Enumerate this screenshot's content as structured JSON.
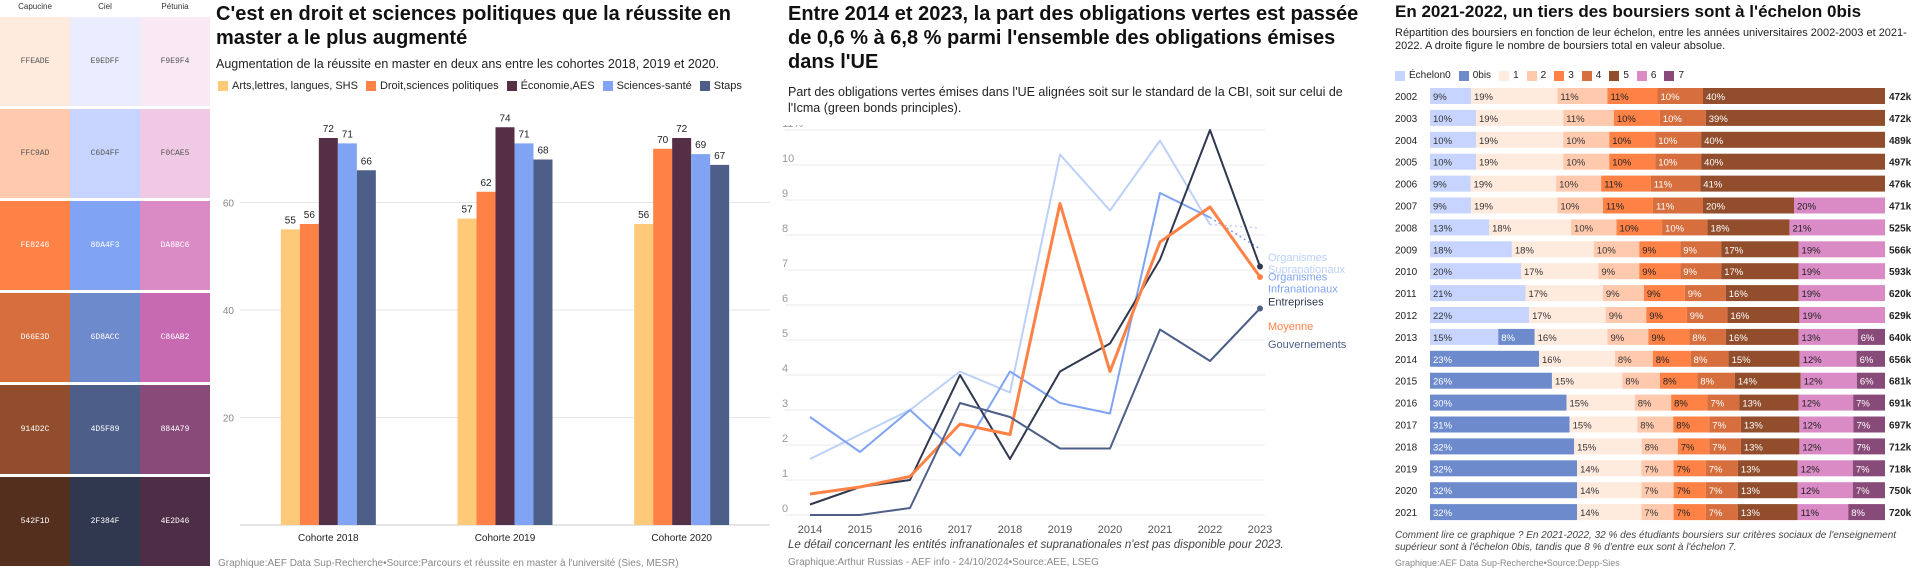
{
  "palette": {
    "columns": [
      {
        "name": "Capucine",
        "swatches": [
          {
            "hex": "FFEADE",
            "color": "#FFEADE",
            "text": "#555"
          },
          {
            "hex": "FFC9AD",
            "color": "#FFC9AD",
            "text": "#555"
          },
          {
            "hex": "FE8246",
            "color": "#FE8246",
            "text": "#fff"
          },
          {
            "hex": "D66E3D",
            "color": "#D66E3D",
            "text": "#fff"
          },
          {
            "hex": "914D2C",
            "color": "#914D2C",
            "text": "#fff"
          },
          {
            "hex": "542F1D",
            "color": "#542F1D",
            "text": "#fff"
          }
        ]
      },
      {
        "name": "Ciel",
        "swatches": [
          {
            "hex": "E9EDFF",
            "color": "#E9EDFF",
            "text": "#555"
          },
          {
            "hex": "C6D4FF",
            "color": "#C6D4FF",
            "text": "#555"
          },
          {
            "hex": "80A4F3",
            "color": "#80A4F3",
            "text": "#fff"
          },
          {
            "hex": "6D8ACC",
            "color": "#6D8ACC",
            "text": "#fff"
          },
          {
            "hex": "4D5F89",
            "color": "#4D5F89",
            "text": "#fff"
          },
          {
            "hex": "2F384F",
            "color": "#2F384F",
            "text": "#fff"
          }
        ]
      },
      {
        "name": "Pétunia",
        "swatches": [
          {
            "hex": "F9E9F4",
            "color": "#F9E9F4",
            "text": "#555"
          },
          {
            "hex": "F0CAE5",
            "color": "#F0CAE5",
            "text": "#555"
          },
          {
            "hex": "DA8BC6",
            "color": "#DA8BC6",
            "text": "#fff"
          },
          {
            "hex": "C86AB2",
            "color": "#C86AB2",
            "text": "#fff"
          },
          {
            "hex": "884A79",
            "color": "#884A79",
            "text": "#fff"
          },
          {
            "hex": "4E2D46",
            "color": "#4E2D46",
            "text": "#fff"
          }
        ]
      }
    ]
  },
  "chart1": {
    "title": "C'est en droit et sciences politiques que la réussite en master a le plus augmenté",
    "subtitle": "Augmentation de la réussite en master en deux ans entre les cohortes 2018, 2019 et 2020.",
    "source": "Graphique:AEF Data Sup-Recherche•Source:Parcours et réussite en master à l'université (Sies, MESR)"
  },
  "chart2": {
    "title": "Entre 2014 et 2023, la part des obligations vertes est passée de 0,6 % à 6,8 % parmi l'ensemble des obligations émises dans l'UE",
    "subtitle": "Part des obligations vertes émises dans l'UE alignées soit sur le standard de la CBI, soit sur celui de l'Icma (green bonds principles).",
    "note": "Le détail concernant les entités infranationales et supranationales n'est pas disponible pour 2023.",
    "source": "Graphique:Arthur Russias - AEF info - 24/10/2024•Source:AEE, LSEG"
  },
  "chart3": {
    "title": "En 2021-2022, un tiers des boursiers sont à l'échelon 0bis",
    "subtitle": "Répartition des boursiers en fonction de leur échelon, entre les années universitaires 2002-2003 et 2021-2022. A droite figure le nombre de boursiers total en valeur absolue.",
    "note": "Comment lire ce graphique ? En 2021-2022, 32 % des étudiants boursiers sur critères sociaux de l'enseignement supérieur sont à l'échelon 0bis, tandis que 8 % d'entre eux sont à l'échelon 7.",
    "source": "Graphique:AEF Data Sup-Recherche•Source:Depp-Sies"
  },
  "chart_data": [
    {
      "type": "bar",
      "categories": [
        "Cohorte 2018",
        "Cohorte 2019",
        "Cohorte 2020"
      ],
      "series": [
        {
          "name": "Arts,lettres, langues, SHS",
          "color": "#FFC97A",
          "values": [
            55,
            57,
            56
          ]
        },
        {
          "name": "Droit,sciences politiques",
          "color": "#FE8246",
          "values": [
            56,
            62,
            70
          ]
        },
        {
          "name": "Économie,AES",
          "color": "#542F45",
          "values": [
            72,
            74,
            72
          ]
        },
        {
          "name": "Sciences-santé",
          "color": "#80A4F3",
          "values": [
            71,
            71,
            69
          ]
        },
        {
          "name": "Staps",
          "color": "#4D5F89",
          "values": [
            66,
            68,
            67
          ]
        }
      ],
      "yticks": [
        20,
        40,
        60
      ],
      "ylim": [
        0,
        80
      ],
      "grid": true,
      "legend": "top"
    },
    {
      "type": "line",
      "x": [
        2014,
        2015,
        2016,
        2017,
        2018,
        2019,
        2020,
        2021,
        2022,
        2023
      ],
      "yticks": [
        "0",
        "1",
        "2",
        "3",
        "4",
        "5",
        "6",
        "7",
        "8",
        "9",
        "10",
        "11%"
      ],
      "ylim": [
        0,
        11
      ],
      "grid": true,
      "series": [
        {
          "name": "Organismes Supranationaux",
          "color": "#BCD0F8",
          "width": 2,
          "dashed_last": true,
          "values": [
            1.6,
            2.3,
            3.0,
            4.1,
            3.5,
            10.3,
            8.7,
            10.7,
            8.3,
            null
          ]
        },
        {
          "name": "Organismes Infranationaux",
          "color": "#80A4F3",
          "width": 2,
          "dashed_last": true,
          "values": [
            2.8,
            1.8,
            3.0,
            1.7,
            4.1,
            3.2,
            2.9,
            9.2,
            8.5,
            null
          ]
        },
        {
          "name": "Entreprises",
          "color": "#2F384F",
          "width": 2,
          "values": [
            0.3,
            0.8,
            1.0,
            4.0,
            1.6,
            4.1,
            4.9,
            7.3,
            11.0,
            7.1
          ]
        },
        {
          "name": "Moyenne",
          "color": "#FE8246",
          "width": 3,
          "values": [
            0.6,
            0.8,
            1.1,
            2.6,
            2.3,
            8.9,
            4.1,
            7.8,
            8.8,
            6.8
          ]
        },
        {
          "name": "Gouvernements",
          "color": "#4D5F89",
          "width": 2,
          "values": [
            0.0,
            0.0,
            0.2,
            3.2,
            2.8,
            1.9,
            1.9,
            5.3,
            4.4,
            5.9
          ]
        }
      ]
    },
    {
      "type": "bar",
      "orientation": "horizontal-stacked-100",
      "legend": "top",
      "echelons": [
        "Échelon0",
        "0bis",
        "1",
        "2",
        "3",
        "4",
        "5",
        "6",
        "7"
      ],
      "colors": [
        "#C6D4FF",
        "#6D8ACC",
        "#FFEADE",
        "#FFC9AD",
        "#FE8246",
        "#D66E3D",
        "#914D2C",
        "#DA8BC6",
        "#884A79"
      ],
      "categories": [
        "2002",
        "2003",
        "2004",
        "2005",
        "2006",
        "2007",
        "2008",
        "2009",
        "2010",
        "2011",
        "2012",
        "2013",
        "2014",
        "2015",
        "2016",
        "2017",
        "2018",
        "2019",
        "2020",
        "2021"
      ],
      "values": [
        [
          9,
          0,
          19,
          11,
          11,
          10,
          40,
          0,
          0
        ],
        [
          10,
          0,
          19,
          11,
          10,
          10,
          39,
          0,
          0
        ],
        [
          10,
          0,
          19,
          10,
          10,
          10,
          40,
          0,
          0
        ],
        [
          10,
          0,
          19,
          10,
          10,
          10,
          40,
          0,
          0
        ],
        [
          9,
          0,
          19,
          10,
          11,
          11,
          41,
          0,
          0
        ],
        [
          9,
          0,
          19,
          10,
          11,
          11,
          20,
          20,
          0
        ],
        [
          13,
          0,
          18,
          10,
          10,
          10,
          18,
          21,
          0
        ],
        [
          18,
          0,
          18,
          10,
          9,
          9,
          17,
          19,
          0
        ],
        [
          20,
          0,
          17,
          9,
          9,
          9,
          17,
          19,
          0
        ],
        [
          21,
          0,
          17,
          9,
          9,
          9,
          16,
          19,
          0
        ],
        [
          22,
          0,
          17,
          9,
          9,
          9,
          16,
          19,
          0
        ],
        [
          15,
          8,
          16,
          9,
          9,
          8,
          16,
          13,
          6
        ],
        [
          0,
          23,
          16,
          8,
          8,
          8,
          15,
          12,
          6
        ],
        [
          0,
          26,
          15,
          8,
          8,
          8,
          14,
          12,
          6
        ],
        [
          0,
          30,
          15,
          8,
          8,
          7,
          13,
          12,
          7
        ],
        [
          0,
          31,
          15,
          8,
          8,
          7,
          13,
          12,
          7
        ],
        [
          0,
          32,
          15,
          8,
          7,
          7,
          13,
          12,
          7
        ],
        [
          0,
          32,
          14,
          7,
          7,
          7,
          13,
          12,
          7
        ],
        [
          0,
          32,
          14,
          7,
          7,
          7,
          13,
          12,
          7
        ],
        [
          0,
          32,
          14,
          7,
          7,
          7,
          13,
          11,
          8
        ]
      ],
      "totals": [
        "472k",
        "472k",
        "489k",
        "497k",
        "476k",
        "471k",
        "525k",
        "566k",
        "593k",
        "620k",
        "629k",
        "640k",
        "656k",
        "681k",
        "691k",
        "697k",
        "712k",
        "718k",
        "750k",
        "720k"
      ]
    }
  ]
}
